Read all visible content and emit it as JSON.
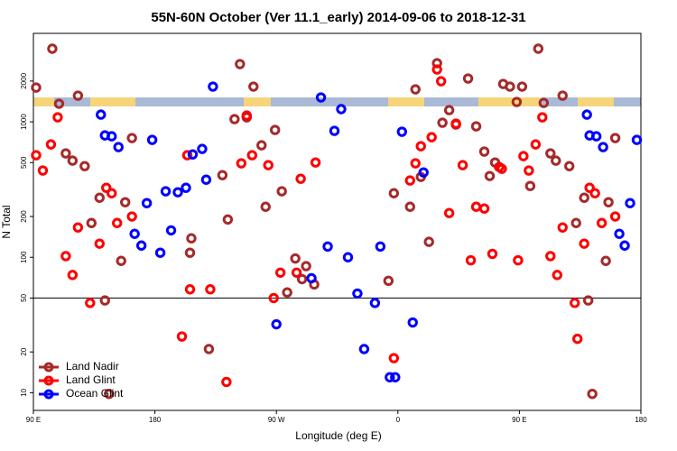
{
  "chart_data": {
    "type": "scatter",
    "title": "55N-60N October (Ver 11.1_early)   2014-09-06 to 2018-12-31",
    "x_label": "Longitude (deg E)",
    "y_label": "N Total",
    "xlim": [
      90,
      540
    ],
    "ylim": [
      7.4,
      4500
    ],
    "log_y": true,
    "xticks": [
      {
        "value": 90,
        "label": "90 E"
      },
      180,
      {
        "value": 270,
        "label": "90 W"
      },
      {
        "value": 360,
        "label": "0"
      },
      {
        "value": 450,
        "label": "90 E"
      },
      {
        "value": 540,
        "label": "180"
      }
    ],
    "yticks": [
      10,
      20,
      50,
      100,
      200,
      500,
      1000,
      2000
    ],
    "hline": 50,
    "legend": "lower left",
    "series": [
      {
        "name": "Land Nadir",
        "color": "#a52a2a",
        "x": [
          92,
          104,
          109,
          114,
          119,
          123,
          128,
          133,
          139,
          143,
          146,
          155,
          158,
          163,
          206,
          207,
          220,
          230,
          234,
          239,
          243,
          248,
          253,
          259,
          262,
          269,
          274,
          278,
          284,
          289,
          292,
          298,
          353,
          357,
          369,
          373,
          377,
          383,
          389,
          393,
          398,
          403,
          412,
          418,
          424,
          428,
          432,
          438,
          443,
          448,
          452,
          458,
          464,
          468,
          473,
          477,
          482,
          487,
          492,
          498,
          501,
          504,
          514,
          516,
          521
        ],
        "values": [
          1791,
          3467,
          1360,
          585,
          517,
          1561,
          471,
          179,
          275,
          48,
          9.8,
          94,
          255,
          759,
          108,
          138,
          21,
          404,
          190,
          1047,
          2670,
          1080,
          1820,
          671,
          236,
          871,
          307,
          55,
          98,
          69,
          86,
          63,
          67,
          297,
          236,
          1738,
          392,
          130,
          2712,
          985,
          1220,
          955,
          2089,
          926,
          603,
          398,
          501,
          1905,
          1820,
          1402,
          1820,
          336,
          3467,
          1380,
          585,
          517,
          1561,
          471,
          179,
          275,
          48,
          9.8,
          94,
          255,
          759
        ]
      },
      {
        "name": "Land Glint",
        "color": "#ff0000",
        "x": [
          92,
          97,
          103,
          108,
          114,
          119,
          123,
          132,
          139,
          144,
          148,
          152,
          163,
          200,
          204,
          206,
          221,
          233,
          244,
          248,
          252,
          264,
          268,
          273,
          285,
          288,
          299,
          357,
          369,
          373,
          377,
          385,
          389,
          392,
          398,
          403,
          408,
          414,
          418,
          424,
          430,
          435,
          437,
          449,
          453,
          457,
          462,
          467,
          473,
          478,
          482,
          491,
          493,
          498,
          502,
          506,
          511,
          521
        ],
        "values": [
          567,
          437,
          681,
          1080,
          102,
          74,
          166,
          46,
          126,
          326,
          297,
          179,
          200,
          26,
          567,
          58,
          58,
          12,
          494,
          1113,
          567,
          479,
          50,
          77,
          77,
          380,
          501,
          18,
          369,
          494,
          661,
          770,
          2436,
          1995,
          212,
          970,
          479,
          95,
          236,
          229,
          106,
          464,
          450,
          95,
          558,
          437,
          681,
          1080,
          102,
          74,
          166,
          46,
          25,
          126,
          326,
          297,
          179,
          200
        ]
      },
      {
        "name": "Ocean Glint",
        "color": "#0000ff",
        "x": [
          140,
          143,
          148,
          153,
          165,
          170,
          174,
          178,
          184,
          188,
          192,
          197,
          203,
          208,
          215,
          218,
          223,
          270,
          296,
          303,
          308,
          313,
          318,
          323,
          330,
          335,
          343,
          347,
          354,
          358,
          363,
          371,
          379,
          500,
          502,
          507,
          512,
          524,
          528,
          532,
          537
        ],
        "values": [
          1130,
          794,
          782,
          651,
          149,
          122,
          251,
          736,
          108,
          307,
          158,
          302,
          326,
          575,
          631,
          374,
          1820,
          32,
          70,
          1514,
          120,
          858,
          1241,
          100,
          54,
          21,
          46,
          120,
          13,
          13,
          845,
          33,
          423,
          1130,
          794,
          782,
          651,
          149,
          122,
          251,
          736
        ]
      }
    ]
  }
}
